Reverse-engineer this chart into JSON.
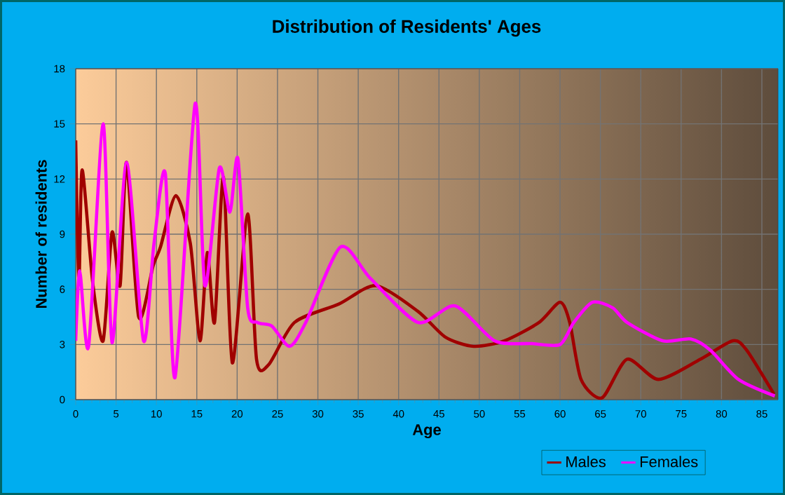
{
  "chart_data": {
    "type": "line",
    "title": "Distribution of Residents' Ages",
    "xlabel": "Age",
    "ylabel": "Number of residents",
    "xlim": [
      0,
      87
    ],
    "xticks": [
      0,
      5,
      10,
      15,
      20,
      25,
      30,
      35,
      40,
      45,
      50,
      55,
      60,
      65,
      70,
      75,
      80,
      85
    ],
    "ylim": [
      0,
      18
    ],
    "yticks": [
      0,
      3,
      6,
      9,
      12,
      15,
      18
    ],
    "grid": true,
    "legend": "bottom right",
    "series": [
      {
        "name": "Males",
        "color": "#a00000",
        "x": [
          0,
          0.4,
          0.8,
          2.1,
          3.4,
          4.5,
          5.5,
          6.3,
          7.8,
          9.6,
          10.5,
          12.4,
          14.2,
          15.4,
          16.3,
          17.2,
          18.3,
          19.4,
          21.3,
          22.4,
          23.9,
          27.1,
          32.6,
          37.2,
          42.4,
          45.8,
          49.3,
          53.1,
          57.4,
          60.0,
          61.2,
          62.6,
          65.2,
          68.3,
          72.2,
          77.4,
          81.4,
          83.1,
          86.5
        ],
        "values": [
          14.1,
          6.4,
          12.5,
          6.4,
          3.2,
          9.1,
          6.2,
          12.9,
          4.5,
          7.3,
          8.3,
          11.1,
          8.5,
          3.2,
          8.0,
          4.2,
          12.1,
          2.0,
          10.1,
          2.2,
          1.9,
          4.2,
          5.2,
          6.2,
          4.8,
          3.4,
          2.9,
          3.2,
          4.2,
          5.3,
          4.2,
          1.1,
          0.1,
          2.2,
          1.1,
          2.2,
          3.2,
          2.7,
          0.3
        ]
      },
      {
        "name": "Females",
        "color": "#ff00ff",
        "x": [
          0,
          0.5,
          1.6,
          3.4,
          4.5,
          6.3,
          8.4,
          9.7,
          11.1,
          12.3,
          14.8,
          16.0,
          17.8,
          19.1,
          20.1,
          21.3,
          22.5,
          24.3,
          26.5,
          28.5,
          32.8,
          36.5,
          42.4,
          47.0,
          51.9,
          56.5,
          60.0,
          61.7,
          64.0,
          66.5,
          68.3,
          72.7,
          76.2,
          78.6,
          82.1,
          86.6
        ],
        "values": [
          3.2,
          7.0,
          2.9,
          15.0,
          3.1,
          12.9,
          3.2,
          8.5,
          12.3,
          1.2,
          16.1,
          6.2,
          12.6,
          10.2,
          13.1,
          5.0,
          4.2,
          4.0,
          2.9,
          4.2,
          8.3,
          6.6,
          4.2,
          5.1,
          3.2,
          3.05,
          3.0,
          4.2,
          5.3,
          5.0,
          4.2,
          3.2,
          3.3,
          2.7,
          1.1,
          0.2
        ]
      }
    ]
  }
}
